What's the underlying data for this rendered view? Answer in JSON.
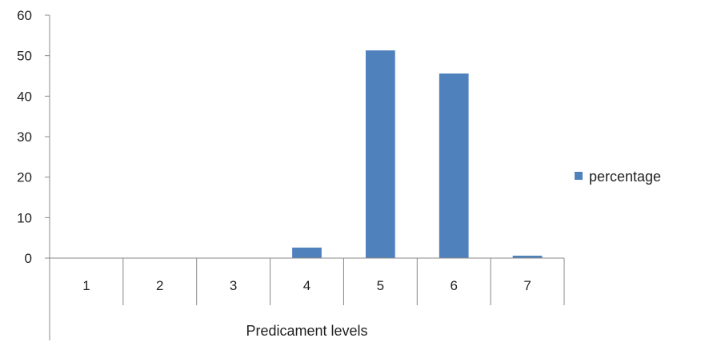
{
  "chart_data": {
    "type": "bar",
    "title": "",
    "xlabel": "Predicament levels",
    "ylabel": "",
    "categories": [
      "1",
      "2",
      "3",
      "4",
      "5",
      "6",
      "7"
    ],
    "series": [
      {
        "name": "percentage",
        "values": [
          0,
          0,
          0,
          2.6,
          51.3,
          45.6,
          0.6
        ],
        "color": "#4F81BD"
      }
    ],
    "ylim": [
      0,
      60
    ],
    "yticks": [
      "0",
      "10",
      "20",
      "30",
      "40",
      "50",
      "60"
    ],
    "grid": false,
    "legend_position": "right",
    "axis_color": "#888888"
  }
}
